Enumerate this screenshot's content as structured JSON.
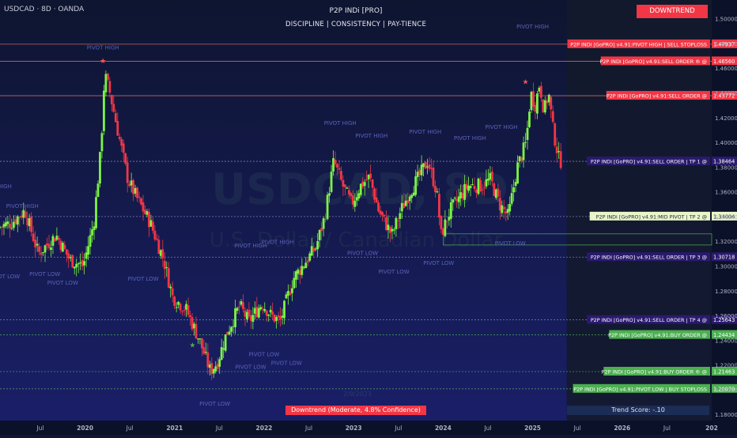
{
  "header": {
    "symbol": "USDCAD · 8D · OANDA",
    "title": "P2P INDi [PRO]",
    "subtitle": "DISCIPLINE | CONSISTENCY | PAY-TIENCE"
  },
  "trend_badge": "DOWNTREND",
  "status": "Downtrend (Moderate, 4.8% Confidence)",
  "trend_score": "Trend Score: -.10",
  "date_ghost": "2/9/2023",
  "watermark": {
    "symbol": "USDCAD, 8D",
    "name": "U.S. Dollar / Canadian Dollar"
  },
  "colors": {
    "background": "#0f1733",
    "up_candle": "#7cf542",
    "down_candle": "#f23645",
    "sell_label": "#f23645",
    "buy_label": "#4caf50",
    "tp_label": "#2a1a6e",
    "mid_pivot_label": "#e8f5c8",
    "pivot_text": "#5a63b8"
  },
  "chart_data": {
    "type": "candlestick",
    "title": "USDCAD · 8D · OANDA",
    "x_axis_labels": [
      "Jul",
      "2020",
      "Jul",
      "2021",
      "Jul",
      "2022",
      "Jul",
      "2023",
      "Jul",
      "2024",
      "Jul",
      "2025",
      "Jul",
      "2026",
      "Jul",
      "202"
    ],
    "x_axis_dates": [
      2019.5,
      2020.0,
      2020.5,
      2021.0,
      2021.5,
      2022.0,
      2022.5,
      2023.0,
      2023.5,
      2024.0,
      2024.5,
      2025.0,
      2025.5,
      2026.0,
      2026.5,
      2027.0
    ],
    "y_axis_ticks": [
      "1.50000",
      "1.48000",
      "1.46000",
      "1.44000",
      "1.42000",
      "1.40000",
      "1.38000",
      "1.36000",
      "1.34000",
      "1.32000",
      "1.30000",
      "1.28000",
      "1.26000",
      "1.24000",
      "1.22000",
      "1.20000",
      "1.18000"
    ],
    "y_axis_values": [
      1.5,
      1.48,
      1.46,
      1.44,
      1.42,
      1.4,
      1.38,
      1.36,
      1.34,
      1.32,
      1.3,
      1.28,
      1.26,
      1.24,
      1.22,
      1.2,
      1.18
    ],
    "ylim": [
      1.175,
      1.51
    ],
    "grid": false,
    "price_path": [
      [
        2019.0,
        1.33
      ],
      [
        2019.2,
        1.335
      ],
      [
        2019.35,
        1.345
      ],
      [
        2019.5,
        1.31
      ],
      [
        2019.7,
        1.325
      ],
      [
        2019.85,
        1.305
      ],
      [
        2020.0,
        1.3
      ],
      [
        2020.12,
        1.335
      ],
      [
        2020.2,
        1.395
      ],
      [
        2020.24,
        1.455
      ],
      [
        2020.3,
        1.44
      ],
      [
        2020.4,
        1.405
      ],
      [
        2020.5,
        1.37
      ],
      [
        2020.6,
        1.355
      ],
      [
        2020.75,
        1.335
      ],
      [
        2020.9,
        1.305
      ],
      [
        2021.0,
        1.275
      ],
      [
        2021.15,
        1.265
      ],
      [
        2021.3,
        1.24
      ],
      [
        2021.42,
        1.215
      ],
      [
        2021.5,
        1.222
      ],
      [
        2021.6,
        1.245
      ],
      [
        2021.75,
        1.268
      ],
      [
        2021.85,
        1.255
      ],
      [
        2022.0,
        1.27
      ],
      [
        2022.1,
        1.26
      ],
      [
        2022.2,
        1.255
      ],
      [
        2022.35,
        1.29
      ],
      [
        2022.45,
        1.3
      ],
      [
        2022.6,
        1.315
      ],
      [
        2022.7,
        1.34
      ],
      [
        2022.8,
        1.385
      ],
      [
        2022.9,
        1.365
      ],
      [
        2023.0,
        1.35
      ],
      [
        2023.1,
        1.365
      ],
      [
        2023.2,
        1.372
      ],
      [
        2023.3,
        1.345
      ],
      [
        2023.45,
        1.325
      ],
      [
        2023.55,
        1.345
      ],
      [
        2023.65,
        1.36
      ],
      [
        2023.75,
        1.372
      ],
      [
        2023.85,
        1.385
      ],
      [
        2023.95,
        1.36
      ],
      [
        2024.0,
        1.325
      ],
      [
        2024.1,
        1.345
      ],
      [
        2024.2,
        1.355
      ],
      [
        2024.3,
        1.365
      ],
      [
        2024.45,
        1.365
      ],
      [
        2024.55,
        1.37
      ],
      [
        2024.65,
        1.35
      ],
      [
        2024.75,
        1.34
      ],
      [
        2024.85,
        1.38
      ],
      [
        2024.95,
        1.4
      ],
      [
        2025.0,
        1.44
      ],
      [
        2025.05,
        1.43
      ],
      [
        2025.1,
        1.448
      ],
      [
        2025.15,
        1.425
      ],
      [
        2025.2,
        1.44
      ],
      [
        2025.25,
        1.41
      ],
      [
        2025.32,
        1.385
      ]
    ],
    "pivot_labels": [
      {
        "text": "PIVOT HIGH",
        "x": 2020.2,
        "y": 1.475
      },
      {
        "text": "PIVOT HIGH",
        "x": 2019.0,
        "y": 1.363
      },
      {
        "text": "PIVOT HIGH",
        "x": 2019.3,
        "y": 1.347
      },
      {
        "text": "PIVOT LOW",
        "x": 2019.1,
        "y": 1.29
      },
      {
        "text": "PIVOT LOW",
        "x": 2019.55,
        "y": 1.292
      },
      {
        "text": "PIVOT LOW",
        "x": 2019.75,
        "y": 1.285
      },
      {
        "text": "PIVOT LOW",
        "x": 2020.65,
        "y": 1.288
      },
      {
        "text": "PIVOT HIGH",
        "x": 2021.85,
        "y": 1.315
      },
      {
        "text": "PIVOT HIGH",
        "x": 2022.15,
        "y": 1.318
      },
      {
        "text": "PIVOT LOW",
        "x": 2021.45,
        "y": 1.187
      },
      {
        "text": "PIVOT LOW",
        "x": 2021.85,
        "y": 1.217
      },
      {
        "text": "PIVOT LOW",
        "x": 2022.0,
        "y": 1.227
      },
      {
        "text": "PIVOT LOW",
        "x": 2022.25,
        "y": 1.22
      },
      {
        "text": "PIVOT HIGH",
        "x": 2022.85,
        "y": 1.414
      },
      {
        "text": "PIVOT HIGH",
        "x": 2023.2,
        "y": 1.404
      },
      {
        "text": "PIVOT HIGH",
        "x": 2023.8,
        "y": 1.407
      },
      {
        "text": "PIVOT HIGH",
        "x": 2024.3,
        "y": 1.402
      },
      {
        "text": "PIVOT HIGH",
        "x": 2024.65,
        "y": 1.411
      },
      {
        "text": "PIVOT HIGH",
        "x": 2025.0,
        "y": 1.492
      },
      {
        "text": "PIVOT LOW",
        "x": 2023.1,
        "y": 1.309
      },
      {
        "text": "PIVOT LOW",
        "x": 2023.45,
        "y": 1.294
      },
      {
        "text": "PIVOT LOW",
        "x": 2023.95,
        "y": 1.301
      },
      {
        "text": "PIVOT LOW",
        "x": 2024.75,
        "y": 1.317
      }
    ],
    "stars": [
      {
        "x": 2020.2,
        "y": 1.464,
        "color": "#ff5252"
      },
      {
        "x": 2024.92,
        "y": 1.447,
        "color": "#ff5252"
      },
      {
        "x": 2021.2,
        "y": 1.234,
        "color": "#4caf50"
      }
    ],
    "levels": [
      {
        "text": "P2P INDi [GoPRO] v4.91:PIVOT HIGH | SELL STOPLOSS",
        "value": "1.47937",
        "y": 1.47937,
        "kind": "sell",
        "line": "#e57373"
      },
      {
        "text": "P2P INDi [GoPRO] v4.91:SELL ORDER ® @",
        "value": "1.46560",
        "y": 1.4656,
        "kind": "sell",
        "line": "#e57373"
      },
      {
        "text": "P2P INDi [GoPRO] v4.91:SELL ORDER @",
        "value": "1.43772",
        "y": 1.43772,
        "kind": "sell",
        "line": "#e57373"
      },
      {
        "text": "P2P INDi [GoPRO] v4.91:SELL ORDER | TP 1 @",
        "value": "1.38464",
        "y": 1.38464,
        "kind": "tp",
        "line": "#8c8cc8"
      },
      {
        "text": "P2P INDi [GoPRO] v4.91:MID PIVOT | TP 2 @",
        "value": "1.34004",
        "y": 1.34004,
        "kind": "mid",
        "line": "#8c8cc8"
      },
      {
        "text": "P2P INDi [GoPRO] v4.91:SELL ORDER | TP 3 @",
        "value": "1.30718",
        "y": 1.30718,
        "kind": "tp",
        "line": "#8c8cc8"
      },
      {
        "text": "P2P INDi [GoPRO] v4.91:SELL ORDER | TP 4 @",
        "value": "1.25643",
        "y": 1.25643,
        "kind": "tp",
        "line": "#6fa8dc"
      },
      {
        "text": "P2P INDi [GoPRO] v4.91:BUY ORDER @",
        "value": "1.24434",
        "y": 1.24434,
        "kind": "buy",
        "line": "#4caf50"
      },
      {
        "text": "P2P INDi [GoPRO] v4.91:BUY ORDER ® @",
        "value": "1.21463",
        "y": 1.21463,
        "kind": "buy",
        "line": "#4caf50"
      },
      {
        "text": "P2P INDi [GoPRO] v4.91:PIVOT LOW | BUY STOPLOSS",
        "value": "1.20070",
        "y": 1.2007,
        "kind": "buy",
        "line": "#4caf50"
      }
    ]
  }
}
